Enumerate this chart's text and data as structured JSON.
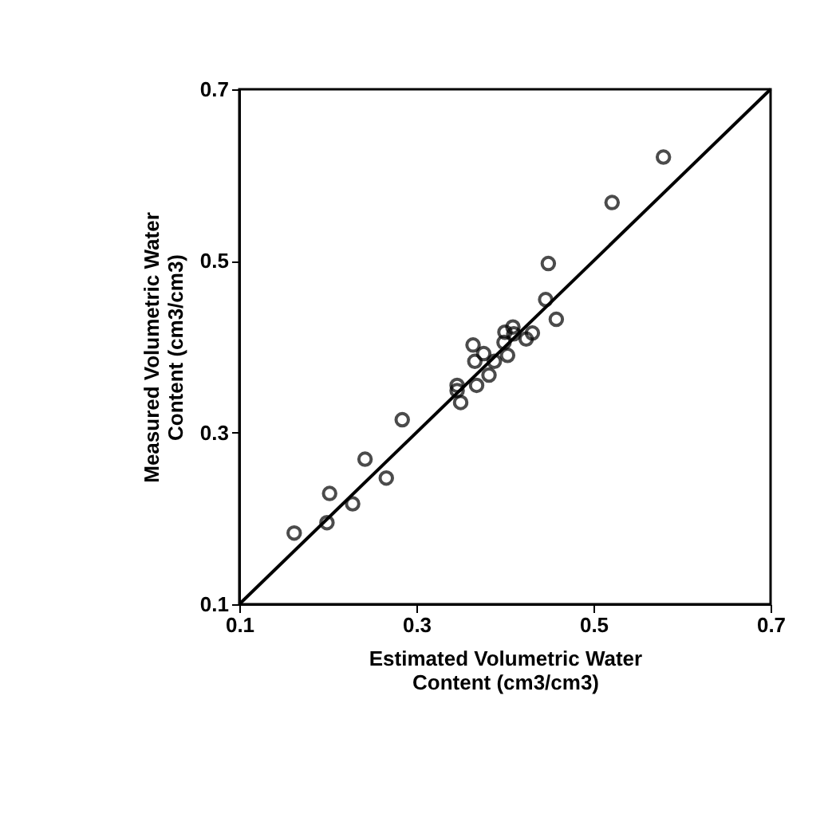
{
  "chart_data": {
    "type": "scatter",
    "xlabel": [
      "Estimated Volumetric Water",
      "Content (cm3/cm3)"
    ],
    "ylabel": [
      "Measured Volumetric Water",
      "Content (cm3/cm3)"
    ],
    "xlim": [
      0.1,
      0.7
    ],
    "ylim": [
      0.1,
      0.7
    ],
    "xticks": [
      0.1,
      0.3,
      0.5,
      0.7
    ],
    "yticks": [
      0.1,
      0.3,
      0.5,
      0.7
    ],
    "grid": false,
    "marker": "circle",
    "series": [
      {
        "color": "#000000",
        "x": [
          0.162,
          0.199,
          0.202,
          0.228,
          0.242,
          0.266,
          0.284,
          0.346,
          0.346,
          0.35,
          0.364,
          0.366,
          0.368,
          0.376,
          0.382,
          0.388,
          0.399,
          0.4,
          0.403,
          0.409,
          0.41,
          0.424,
          0.431,
          0.446,
          0.449,
          0.458,
          0.521,
          0.579
        ],
        "values": [
          0.183,
          0.195,
          0.229,
          0.217,
          0.269,
          0.247,
          0.315,
          0.355,
          0.349,
          0.335,
          0.402,
          0.383,
          0.355,
          0.392,
          0.367,
          0.383,
          0.405,
          0.417,
          0.39,
          0.423,
          0.415,
          0.409,
          0.416,
          0.455,
          0.497,
          0.432,
          0.568,
          0.621
        ]
      },
      {
        "type": "line",
        "color": "#000000",
        "line_style": "solid",
        "marker": "none",
        "x": [
          0.1,
          0.7
        ],
        "values": [
          0.1,
          0.7
        ]
      }
    ]
  }
}
